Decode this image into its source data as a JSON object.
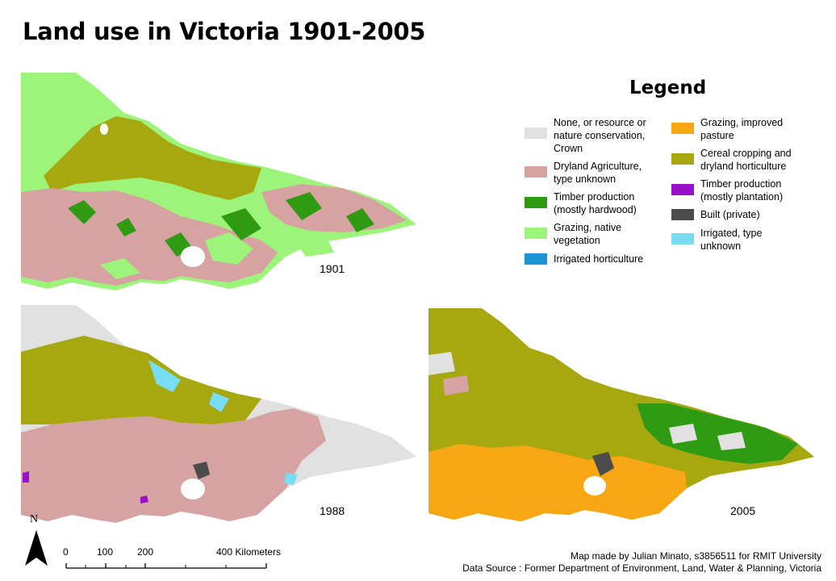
{
  "title": "Land use in Victoria 1901-2005",
  "maps": [
    {
      "year": "1901"
    },
    {
      "year": "1988"
    },
    {
      "year": "2005"
    }
  ],
  "legend": {
    "title": "Legend",
    "items": [
      {
        "label_lines": [
          "None, or resource or",
          "nature conservation,",
          "Crown"
        ],
        "color": "#e1e1e1"
      },
      {
        "label_lines": [
          "Dryland Agriculture,",
          "type unknown"
        ],
        "color": "#d6a2a2"
      },
      {
        "label_lines": [
          "Timber production",
          "(mostly hardwood)"
        ],
        "color": "#2e9b12"
      },
      {
        "label_lines": [
          "Grazing, native",
          "vegetation"
        ],
        "color": "#9cf57a"
      },
      {
        "label_lines": [
          "Irrigated horticulture"
        ],
        "color": "#1b93d6"
      },
      {
        "label_lines": [
          "Grazing, improved",
          "pasture"
        ],
        "color": "#f7a614"
      },
      {
        "label_lines": [
          "Cereal cropping and",
          "dryland horticulture"
        ],
        "color": "#a7a810"
      },
      {
        "label_lines": [
          "Timber production",
          "(mostly plantation)"
        ],
        "color": "#9a10c8"
      },
      {
        "label_lines": [
          "Built (private)"
        ],
        "color": "#4b4b4b"
      },
      {
        "label_lines": [
          "Irrigated, type",
          "unknown"
        ],
        "color": "#78dcf5"
      }
    ]
  },
  "north_arrow": {
    "label": "N"
  },
  "scale_bar": {
    "labels": [
      "0",
      "100",
      "200",
      "400 Kilometers"
    ]
  },
  "credits": [
    "Map made by Julian Minato, s3856511 for RMIT University",
    "Data Source : Former Department of Environment, Land, Water & Planning, Victoria"
  ]
}
